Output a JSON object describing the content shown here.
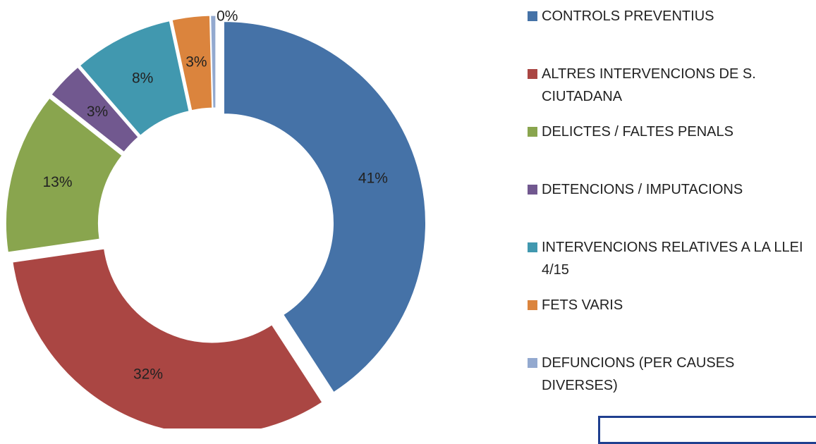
{
  "chart_data": {
    "type": "donut",
    "categories": [
      "CONTROLS PREVENTIUS",
      "ALTRES INTERVENCIONS DE S. CIUTADANA",
      "DELICTES / FALTES PENALS",
      "DETENCIONS / IMPUTACIONS",
      "INTERVENCIONS RELATIVES A LA LLEI 4/15",
      "FETS VARIS",
      "DEFUNCIONS (PER CAUSES DIVERSES)"
    ],
    "values": [
      41,
      32,
      13,
      3,
      8,
      3,
      0.4
    ],
    "value_labels": [
      "41%",
      "32%",
      "13%",
      "3%",
      "8%",
      "3%",
      "0%"
    ],
    "colors": [
      "#4572a7",
      "#aa4643",
      "#89a54e",
      "#71588f",
      "#4198af",
      "#db843d",
      "#93a9cf"
    ],
    "legend": "right"
  }
}
